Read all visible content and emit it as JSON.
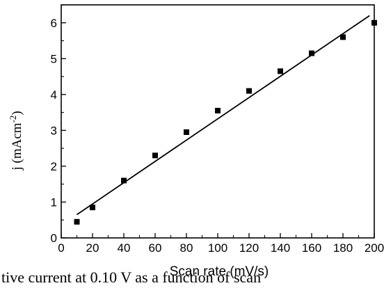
{
  "chart_data": {
    "type": "scatter",
    "xlabel": "Scan rate (mV/s)",
    "ylabel": "j (mAcm^-2)",
    "ylabel_parts": {
      "base": "j (mAcm",
      "sup": "-2",
      "end": ")"
    },
    "xlim": [
      0,
      200
    ],
    "ylim": [
      0,
      6.5
    ],
    "xticks": [
      0,
      20,
      40,
      60,
      80,
      100,
      120,
      140,
      160,
      180,
      200
    ],
    "yticks": [
      0,
      1,
      2,
      3,
      4,
      5,
      6
    ],
    "grid": false,
    "series": [
      {
        "x": [
          10,
          20,
          40,
          60,
          80,
          100,
          120,
          140,
          160,
          180,
          200
        ],
        "y": [
          0.45,
          0.85,
          1.6,
          2.3,
          2.95,
          3.55,
          4.1,
          4.65,
          5.15,
          5.6,
          6.0
        ]
      }
    ],
    "fit_line": {
      "x": [
        10,
        197
      ],
      "y": [
        0.65,
        6.2
      ]
    },
    "colors": {
      "marker": "#000000",
      "line": "#000000",
      "axis": "#000000"
    }
  },
  "caption": "tive current at 0.10 V as a function of scan"
}
